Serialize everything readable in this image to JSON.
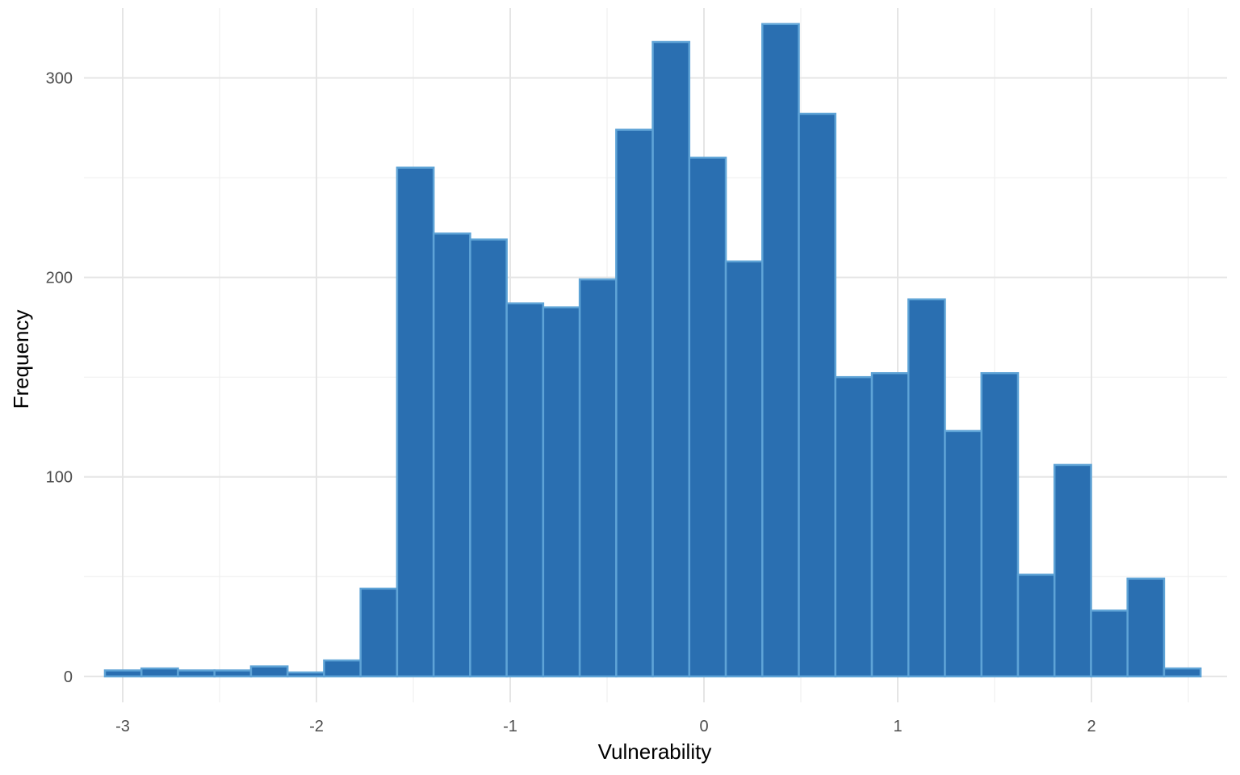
{
  "chart_data": {
    "type": "bar",
    "subtype": "histogram",
    "xlabel": "Vulnerability",
    "ylabel": "Frequency",
    "xlim": [
      -3.2,
      2.7
    ],
    "ylim": [
      -13,
      335
    ],
    "x_ticks": [
      -3,
      -2,
      -1,
      0,
      1,
      2
    ],
    "x_tick_labels": [
      "-3",
      "-2",
      "-1",
      "0",
      "1",
      "2"
    ],
    "y_ticks": [
      0,
      100,
      200,
      300
    ],
    "y_tick_labels": [
      "0",
      "100",
      "200",
      "300"
    ],
    "grid": true,
    "bin_width": 0.1885,
    "bin_centers": [
      -2.9975,
      -2.809,
      -2.6205,
      -2.432,
      -2.2435,
      -2.055,
      -1.8665,
      -1.678,
      -1.4895,
      -1.301,
      -1.1125,
      -0.924,
      -0.7355,
      -0.547,
      -0.3585,
      -0.17,
      0.0185,
      0.207,
      0.3955,
      0.584,
      0.7725,
      0.961,
      1.1495,
      1.338,
      1.5265,
      1.715,
      1.9035,
      2.092,
      2.2805,
      2.469
    ],
    "values": [
      3,
      4,
      3,
      3,
      5,
      2,
      8,
      44,
      255,
      222,
      219,
      187,
      185,
      199,
      274,
      318,
      260,
      208,
      327,
      282,
      150,
      152,
      189,
      123,
      152,
      51,
      106,
      33,
      49,
      4
    ],
    "colors": {
      "bar_fill": "#2a6fb1",
      "bar_outline": "#5ea3d6",
      "grid_major": "#e5e5e5",
      "grid_minor": "#f0f0f0"
    }
  }
}
